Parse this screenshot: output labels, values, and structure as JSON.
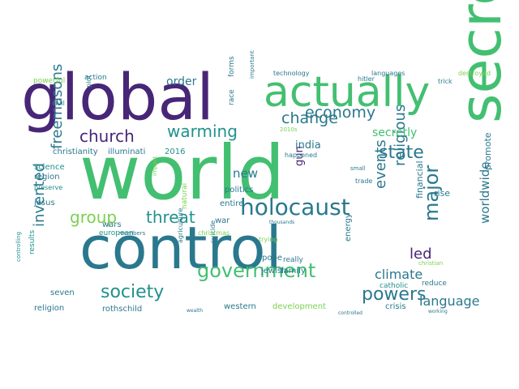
{
  "title": "Word cloud",
  "palette": {
    "dark_purple": "#482677",
    "teal_blue": "#2a788e",
    "teal": "#21918c",
    "green": "#43bf71",
    "light_green": "#7ad151",
    "yellow_green": "#bddf26",
    "purple": "#414487",
    "blue": "#355f8d"
  },
  "words": [
    {
      "text": "world",
      "size": "xxxl",
      "color": "green",
      "rotated": false
    },
    {
      "text": "control",
      "size": "xxxl",
      "color": "teal_blue",
      "rotated": false
    },
    {
      "text": "global",
      "size": "xxl",
      "color": "dark_purple",
      "rotated": false
    },
    {
      "text": "secret",
      "size": "xxl",
      "color": "green",
      "rotated": true
    },
    {
      "text": "actually",
      "size": "xl",
      "color": "green",
      "rotated": false
    },
    {
      "text": "holocaust",
      "size": "l",
      "color": "teal_blue",
      "rotated": false
    },
    {
      "text": "government",
      "size": "l",
      "color": "green",
      "rotated": false
    },
    {
      "text": "church",
      "size": "m",
      "color": "dark_purple",
      "rotated": false
    },
    {
      "text": "warming",
      "size": "m",
      "color": "teal",
      "rotated": false
    },
    {
      "text": "economy",
      "size": "m",
      "color": "teal_blue",
      "rotated": false
    },
    {
      "text": "change",
      "size": "m",
      "color": "teal_blue",
      "rotated": false
    },
    {
      "text": "state",
      "size": "m",
      "color": "teal_blue",
      "rotated": false
    },
    {
      "text": "society",
      "size": "m",
      "color": "teal",
      "rotated": false
    },
    {
      "text": "powers",
      "size": "m",
      "color": "teal_blue",
      "rotated": false
    },
    {
      "text": "threat",
      "size": "m",
      "color": "teal",
      "rotated": false
    },
    {
      "text": "group",
      "size": "m",
      "color": "light_green",
      "rotated": false
    },
    {
      "text": "major",
      "size": "m",
      "color": "teal_blue",
      "rotated": true
    },
    {
      "text": "freemasons",
      "size": "m",
      "color": "teal_blue",
      "rotated": true
    },
    {
      "text": "invented",
      "size": "m",
      "color": "teal_blue",
      "rotated": true
    },
    {
      "text": "religious",
      "size": "m",
      "color": "teal_blue",
      "rotated": true
    },
    {
      "text": "events",
      "size": "m",
      "color": "teal_blue",
      "rotated": true
    },
    {
      "text": "led",
      "size": "m",
      "color": "dark_purple",
      "rotated": false
    },
    {
      "text": "language",
      "size": "s",
      "color": "teal_blue",
      "rotated": false
    },
    {
      "text": "climate",
      "size": "s",
      "color": "teal_blue",
      "rotated": false
    },
    {
      "text": "worldwide",
      "size": "s",
      "color": "teal_blue",
      "rotated": true
    },
    {
      "text": "secretly",
      "size": "s",
      "color": "green",
      "rotated": false
    },
    {
      "text": "india",
      "size": "s",
      "color": "teal_blue",
      "rotated": false
    },
    {
      "text": "new",
      "size": "s",
      "color": "teal_blue",
      "rotated": false
    },
    {
      "text": "gun",
      "size": "s",
      "color": "dark_purple",
      "rotated": true
    },
    {
      "text": "order",
      "size": "s",
      "color": "teal_blue",
      "rotated": false
    },
    {
      "text": "financial",
      "size": "xs",
      "color": "teal_blue",
      "rotated": true
    },
    {
      "text": "rise",
      "size": "xs",
      "color": "teal_blue",
      "rotated": false
    },
    {
      "text": "promote",
      "size": "xs",
      "color": "teal_blue",
      "rotated": true
    },
    {
      "text": "christianity",
      "size": "xs",
      "color": "teal_blue",
      "rotated": false
    },
    {
      "text": "illuminati",
      "size": "xs",
      "color": "teal_blue",
      "rotated": false
    },
    {
      "text": "2016",
      "size": "xs",
      "color": "teal",
      "rotated": false
    },
    {
      "text": "science",
      "size": "xs",
      "color": "teal",
      "rotated": false
    },
    {
      "text": "region",
      "size": "xs",
      "color": "teal_blue",
      "rotated": false
    },
    {
      "text": "jesus",
      "size": "xs",
      "color": "teal_blue",
      "rotated": false
    },
    {
      "text": "politics",
      "size": "xs",
      "color": "teal_blue",
      "rotated": false
    },
    {
      "text": "entire",
      "size": "xs",
      "color": "teal_blue",
      "rotated": false
    },
    {
      "text": "war",
      "size": "xs",
      "color": "teal_blue",
      "rotated": false
    },
    {
      "text": "wars",
      "size": "xs",
      "color": "teal_blue",
      "rotated": false
    },
    {
      "text": "european",
      "size": "xs",
      "color": "teal",
      "rotated": false
    },
    {
      "text": "pope",
      "size": "xs",
      "color": "teal_blue",
      "rotated": false
    },
    {
      "text": "jewish",
      "size": "xs",
      "color": "teal_blue",
      "rotated": false
    },
    {
      "text": "family",
      "size": "xs",
      "color": "teal_blue",
      "rotated": false
    },
    {
      "text": "really",
      "size": "xs",
      "color": "teal_blue",
      "rotated": false
    },
    {
      "text": "energy",
      "size": "xs",
      "color": "teal_blue",
      "rotated": true
    },
    {
      "text": "catholic",
      "size": "xs",
      "color": "teal",
      "rotated": false
    },
    {
      "text": "reduce",
      "size": "xs",
      "color": "teal_blue",
      "rotated": false
    },
    {
      "text": "crisis",
      "size": "xs",
      "color": "teal_blue",
      "rotated": false
    },
    {
      "text": "western",
      "size": "xs",
      "color": "teal_blue",
      "rotated": false
    },
    {
      "text": "development",
      "size": "xs",
      "color": "light_green",
      "rotated": false
    },
    {
      "text": "religion",
      "size": "xs",
      "color": "teal_blue",
      "rotated": false
    },
    {
      "text": "seven",
      "size": "xs",
      "color": "teal_blue",
      "rotated": false
    },
    {
      "text": "rothschild",
      "size": "xs",
      "color": "teal_blue",
      "rotated": false
    },
    {
      "text": "results",
      "size": "xs",
      "color": "teal",
      "rotated": true
    },
    {
      "text": "powerful",
      "size": "xs",
      "color": "light_green",
      "rotated": false
    },
    {
      "text": "action",
      "size": "xs",
      "color": "teal_blue",
      "rotated": false
    },
    {
      "text": "technology",
      "size": "xs",
      "color": "teal_blue",
      "rotated": false
    },
    {
      "text": "languages",
      "size": "xs",
      "color": "teal_blue",
      "rotated": false
    },
    {
      "text": "destroyed",
      "size": "xs",
      "color": "light_green",
      "rotated": false
    },
    {
      "text": "forms",
      "size": "xs",
      "color": "teal_blue",
      "rotated": true
    },
    {
      "text": "race",
      "size": "xs",
      "color": "teal_blue",
      "rotated": true
    },
    {
      "text": "natural",
      "size": "xs",
      "color": "light_green",
      "rotated": true
    },
    {
      "text": "agriculture",
      "size": "xs",
      "color": "teal_blue",
      "rotated": true
    },
    {
      "text": "suicide",
      "size": "xs",
      "color": "teal_blue",
      "rotated": true
    },
    {
      "text": "trying",
      "size": "xs",
      "color": "light_green",
      "rotated": false
    },
    {
      "text": "christmas",
      "size": "xs",
      "color": "light_green",
      "rotated": false
    },
    {
      "text": "hitler",
      "size": "xs",
      "color": "teal_blue",
      "rotated": false
    },
    {
      "text": "trick",
      "size": "xs",
      "color": "teal_blue",
      "rotated": false
    },
    {
      "text": "trade",
      "size": "xs",
      "color": "teal_blue",
      "rotated": false
    },
    {
      "text": "happened",
      "size": "xs",
      "color": "teal_blue",
      "rotated": false
    },
    {
      "text": "members",
      "size": "xs",
      "color": "teal_blue",
      "rotated": false
    },
    {
      "text": "plot",
      "size": "xs",
      "color": "teal_blue",
      "rotated": true
    },
    {
      "text": "civil",
      "size": "xs",
      "color": "teal_blue",
      "rotated": false
    },
    {
      "text": "impact",
      "size": "xs",
      "color": "light_green",
      "rotated": true
    },
    {
      "text": "controlling",
      "size": "xs",
      "color": "teal",
      "rotated": true
    },
    {
      "text": "preserve",
      "size": "xs",
      "color": "teal",
      "rotated": false
    },
    {
      "text": "important",
      "size": "xs",
      "color": "teal_blue",
      "rotated": true
    },
    {
      "text": "small",
      "size": "xs",
      "color": "teal_blue",
      "rotated": false
    },
    {
      "text": "2010s",
      "size": "xs",
      "color": "light_green",
      "rotated": false
    },
    {
      "text": "christian",
      "size": "xs",
      "color": "light_green",
      "rotated": false
    },
    {
      "text": "thousands",
      "size": "xs",
      "color": "teal_blue",
      "rotated": false
    },
    {
      "text": "wealth",
      "size": "xs",
      "color": "teal_blue",
      "rotated": false
    },
    {
      "text": "controlled",
      "size": "xs",
      "color": "teal_blue",
      "rotated": false
    },
    {
      "text": "working",
      "size": "xs",
      "color": "teal_blue",
      "rotated": false
    }
  ]
}
